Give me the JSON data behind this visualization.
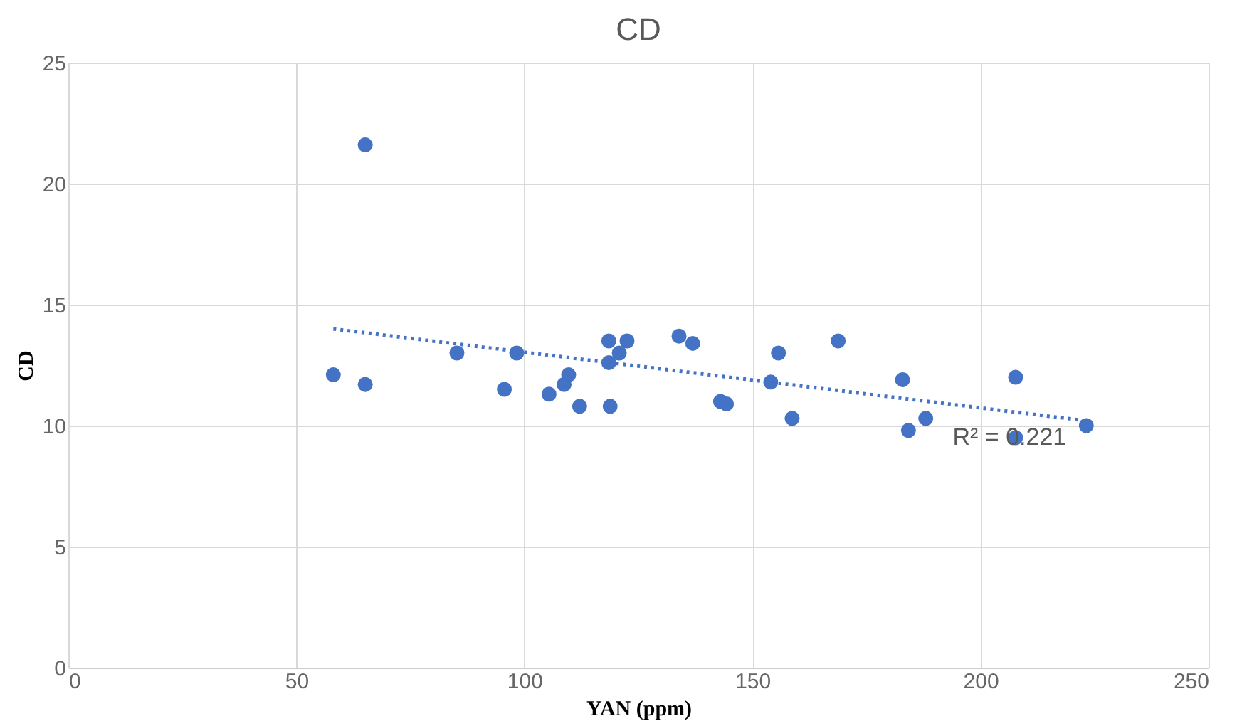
{
  "chart_data": {
    "type": "scatter",
    "title": "CD",
    "xlabel": "YAN (ppm)",
    "ylabel": "CD",
    "xlim": [
      0,
      250
    ],
    "xticks": [
      0,
      50,
      100,
      150,
      200,
      250
    ],
    "ylim": [
      0,
      25
    ],
    "yticks": [
      0,
      5,
      10,
      15,
      20,
      25
    ],
    "grid": true,
    "marker": "circle",
    "annotations": [
      "R² = 0.221"
    ],
    "series": [
      {
        "color": "#4472c4",
        "x": [
          58.1,
          65.1,
          65.1,
          85.2,
          95.6,
          98.3,
          105.4,
          108.7,
          109.7,
          112.1,
          118.5,
          118.5,
          118.8,
          120.8,
          122.5,
          133.9,
          136.9,
          143.0,
          144.3,
          154.0,
          155.7,
          158.7,
          168.8,
          182.9,
          184.2,
          188.0,
          207.7,
          207.7,
          223.2
        ],
        "values": [
          12.1,
          21.6,
          11.7,
          13.0,
          11.5,
          13.0,
          11.3,
          11.7,
          12.1,
          10.8,
          13.5,
          12.6,
          10.8,
          13.0,
          13.5,
          13.7,
          13.4,
          11.0,
          10.9,
          11.8,
          13.0,
          10.3,
          13.5,
          11.9,
          9.8,
          10.3,
          12.0,
          9.5,
          10.0
        ]
      },
      {
        "type": "line",
        "color": "#4472c4",
        "line_style": "dotted",
        "marker": "none",
        "x": [
          58.1,
          223.2
        ],
        "values": [
          14.0,
          10.2
        ]
      }
    ]
  }
}
